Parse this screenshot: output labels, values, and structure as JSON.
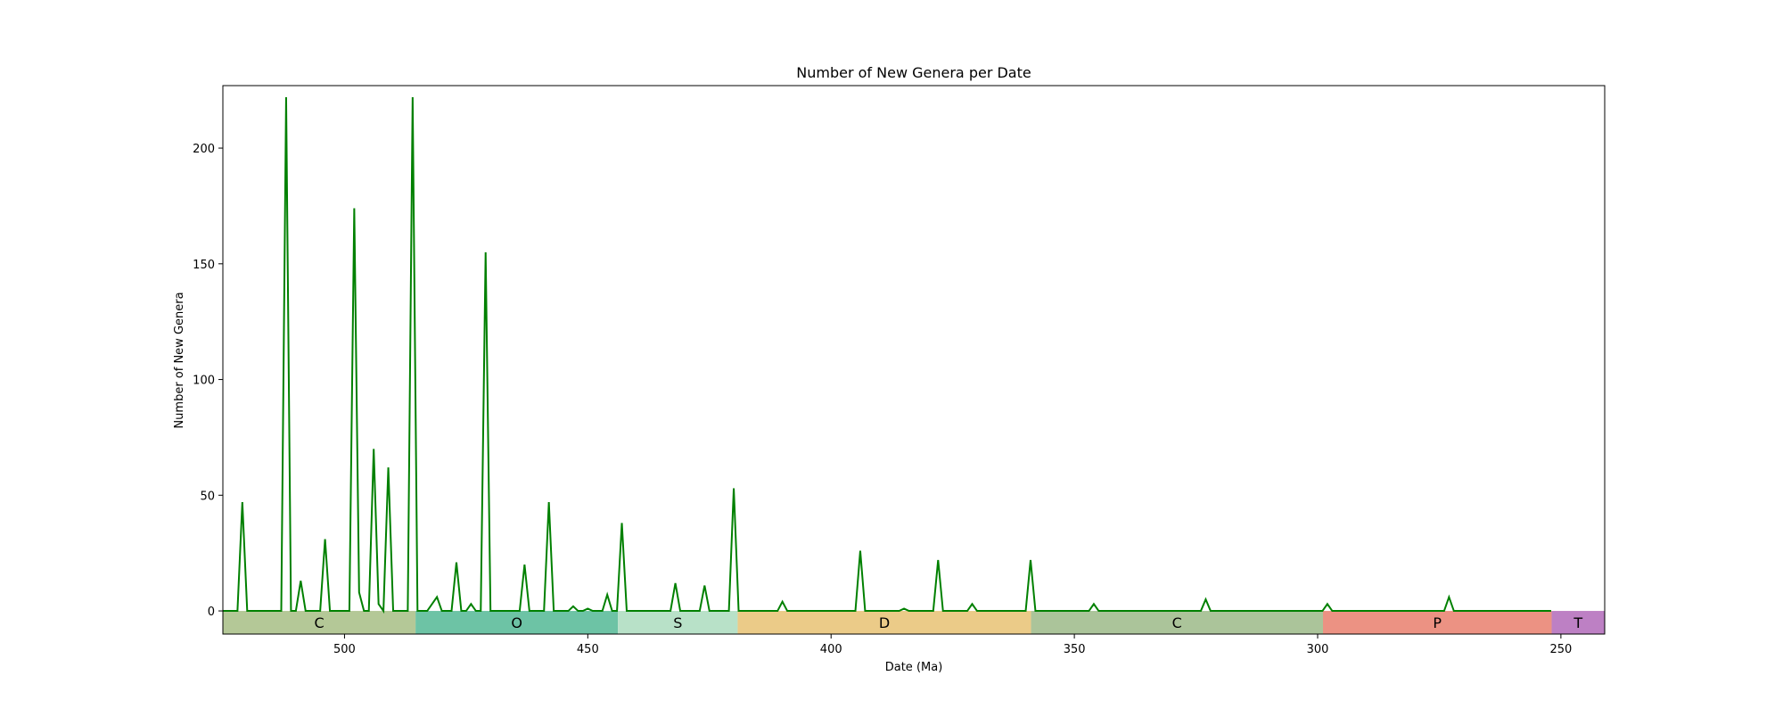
{
  "chart_data": {
    "type": "line",
    "title": "Number of New Genera per Date",
    "xlabel": "Date (Ma)",
    "ylabel": "Number of New Genera",
    "x_reversed": true,
    "xlim": [
      525,
      241
    ],
    "ylim": [
      -10,
      227
    ],
    "grid": false,
    "line_color": "#008000",
    "x_ticks": [
      500,
      450,
      400,
      350,
      300,
      250
    ],
    "y_ticks": [
      0,
      50,
      100,
      150,
      200
    ],
    "periods": [
      {
        "label": "C",
        "start": 525,
        "end": 485.4,
        "color": "#b4c897"
      },
      {
        "label": "O",
        "start": 485.4,
        "end": 443.8,
        "color": "#6dc3a5"
      },
      {
        "label": "S",
        "start": 443.8,
        "end": 419.2,
        "color": "#b8e1c8"
      },
      {
        "label": "D",
        "start": 419.2,
        "end": 358.9,
        "color": "#ebcb88"
      },
      {
        "label": "C",
        "start": 358.9,
        "end": 298.9,
        "color": "#abc49a"
      },
      {
        "label": "P",
        "start": 298.9,
        "end": 251.9,
        "color": "#ec9283"
      },
      {
        "label": "T",
        "start": 251.9,
        "end": 241,
        "color": "#bd80c4"
      }
    ],
    "series": [
      {
        "points": [
          [
            525,
            0
          ],
          [
            522,
            0
          ],
          [
            521,
            47
          ],
          [
            520,
            0
          ],
          [
            513,
            0
          ],
          [
            512,
            222
          ],
          [
            511,
            0
          ],
          [
            510,
            0
          ],
          [
            509,
            13
          ],
          [
            508,
            0
          ],
          [
            505,
            0
          ],
          [
            504,
            31
          ],
          [
            503,
            0
          ],
          [
            499,
            0
          ],
          [
            498,
            174
          ],
          [
            497,
            8
          ],
          [
            496,
            0
          ],
          [
            495,
            0
          ],
          [
            494,
            70
          ],
          [
            493,
            3
          ],
          [
            492,
            0
          ],
          [
            491,
            62
          ],
          [
            490,
            0
          ],
          [
            487,
            0
          ],
          [
            486,
            222
          ],
          [
            485,
            0
          ],
          [
            483,
            0
          ],
          [
            481,
            6
          ],
          [
            480,
            0
          ],
          [
            478,
            0
          ],
          [
            477,
            21
          ],
          [
            476,
            0
          ],
          [
            475,
            0
          ],
          [
            474,
            3
          ],
          [
            473,
            0
          ],
          [
            472,
            0
          ],
          [
            471,
            155
          ],
          [
            470,
            0
          ],
          [
            464,
            0
          ],
          [
            463,
            20
          ],
          [
            462,
            0
          ],
          [
            460,
            0
          ],
          [
            459,
            0
          ],
          [
            458,
            47
          ],
          [
            457,
            0
          ],
          [
            454,
            0
          ],
          [
            453,
            2
          ],
          [
            452,
            0
          ],
          [
            451,
            0
          ],
          [
            450,
            1
          ],
          [
            449,
            0
          ],
          [
            447,
            0
          ],
          [
            446,
            7
          ],
          [
            445,
            0
          ],
          [
            444,
            0
          ],
          [
            443,
            38
          ],
          [
            442,
            0
          ],
          [
            433,
            0
          ],
          [
            432,
            12
          ],
          [
            431,
            0
          ],
          [
            427,
            0
          ],
          [
            426,
            11
          ],
          [
            425,
            0
          ],
          [
            421,
            0
          ],
          [
            420,
            53
          ],
          [
            419,
            0
          ],
          [
            411,
            0
          ],
          [
            410,
            4
          ],
          [
            409,
            0
          ],
          [
            395,
            0
          ],
          [
            394,
            26
          ],
          [
            393,
            0
          ],
          [
            386,
            0
          ],
          [
            385,
            1
          ],
          [
            384,
            0
          ],
          [
            379,
            0
          ],
          [
            378,
            22
          ],
          [
            377,
            0
          ],
          [
            372,
            0
          ],
          [
            371,
            3
          ],
          [
            370,
            0
          ],
          [
            360,
            0
          ],
          [
            359,
            22
          ],
          [
            358,
            0
          ],
          [
            347,
            0
          ],
          [
            346,
            3
          ],
          [
            345,
            0
          ],
          [
            324,
            0
          ],
          [
            323,
            5
          ],
          [
            322,
            0
          ],
          [
            299,
            0
          ],
          [
            298,
            3
          ],
          [
            297,
            0
          ],
          [
            274,
            0
          ],
          [
            273,
            6
          ],
          [
            272,
            0
          ],
          [
            252,
            0
          ]
        ]
      }
    ]
  }
}
